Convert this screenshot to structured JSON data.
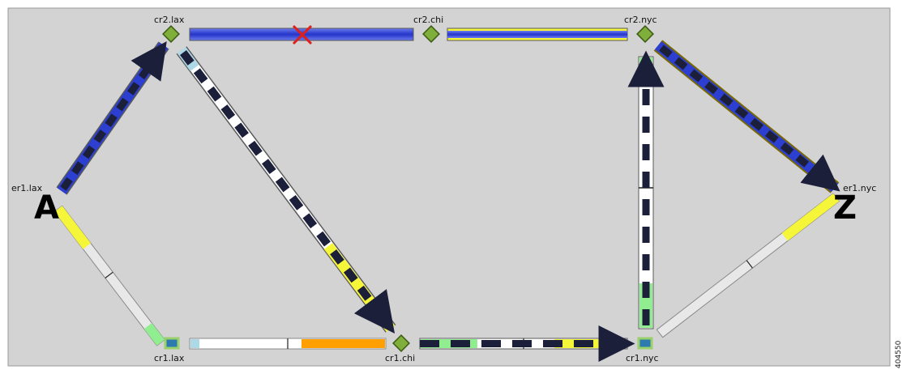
{
  "diagram": {
    "canvas_color": "#d3d3d3",
    "nodes": {
      "cr2_lax": {
        "label": "cr2.lax",
        "kind": "core-router"
      },
      "cr2_chi": {
        "label": "cr2.chi",
        "kind": "core-router"
      },
      "cr2_nyc": {
        "label": "cr2.nyc",
        "kind": "core-router"
      },
      "er1_lax": {
        "label": "er1.lax",
        "kind": "edge-router"
      },
      "er1_nyc": {
        "label": "er1.nyc",
        "kind": "edge-router"
      },
      "cr1_lax": {
        "label": "cr1.lax",
        "kind": "edge-router"
      },
      "cr1_chi": {
        "label": "cr1.chi",
        "kind": "core-router"
      },
      "cr1_nyc": {
        "label": "cr1.nyc",
        "kind": "edge-router"
      }
    },
    "endpoints": {
      "source": "A",
      "destination": "Z"
    },
    "links": [
      {
        "from": "er1.lax",
        "to": "cr2.lax",
        "style": "blue-dashed",
        "direction": "forward"
      },
      {
        "from": "cr2.lax",
        "to": "cr2.chi",
        "style": "blue",
        "direction": "forward",
        "failed": true
      },
      {
        "from": "cr2.chi",
        "to": "cr2.nyc",
        "style": "blue-over-yellow",
        "direction": "forward"
      },
      {
        "from": "cr2.nyc",
        "to": "er1.nyc",
        "style": "blue-dashed",
        "direction": "forward"
      },
      {
        "from": "cr2.lax",
        "to": "cr1.chi",
        "style": "black-white-dashed",
        "direction": "forward"
      },
      {
        "from": "cr1.chi",
        "to": "cr1.nyc",
        "style": "black-white-dashed",
        "direction": "forward"
      },
      {
        "from": "cr1.nyc",
        "to": "cr2.nyc",
        "style": "black-white-dashed",
        "direction": "forward"
      },
      {
        "from": "er1.lax",
        "to": "cr1.lax",
        "style": "utilization-bar"
      },
      {
        "from": "cr1.lax",
        "to": "cr1.chi",
        "style": "utilization-bar"
      },
      {
        "from": "cr1.nyc",
        "to": "er1.nyc",
        "style": "utilization-bar"
      }
    ],
    "utilization_colors": [
      "#add8e6",
      "#ffffff",
      "#ff9f00",
      "#f5f53a",
      "#90ee90"
    ],
    "path_colors": {
      "blue": "#2d3fd0",
      "dash_dark": "#1b1f3a",
      "dash_light": "#ffffff",
      "failure_marker": "#e0201b"
    }
  },
  "figure_id": "404550"
}
